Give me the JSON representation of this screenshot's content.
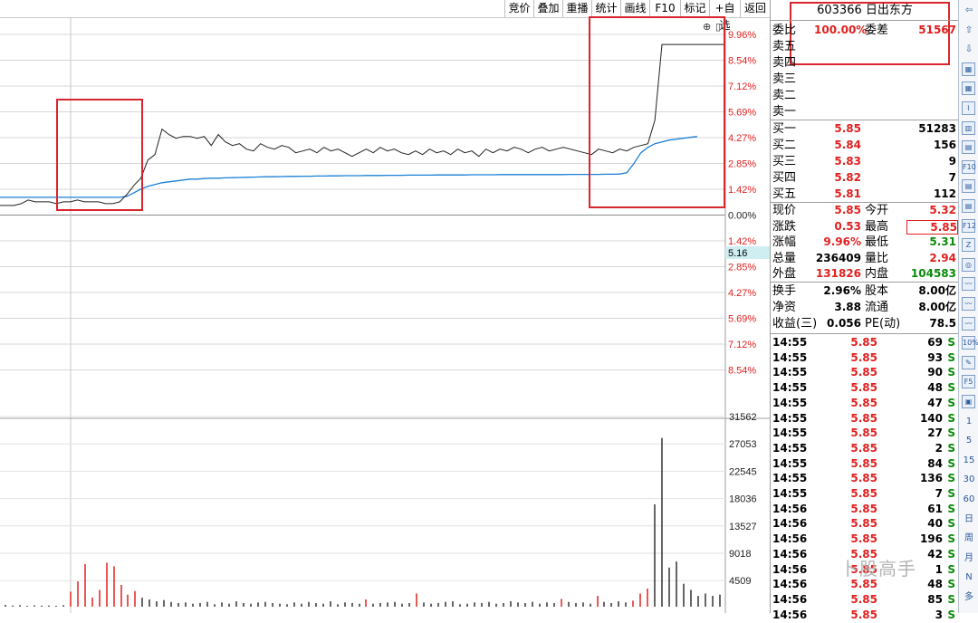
{
  "toolbar": {
    "buttons": [
      "竞价",
      "叠加",
      "重播",
      "统计",
      "画线",
      "F10",
      "标记",
      "+自选",
      "返回"
    ]
  },
  "chart": {
    "pct_axis": [
      "9.96%",
      "8.54%",
      "7.12%",
      "5.69%",
      "4.27%",
      "2.85%",
      "1.42%",
      "0.00%",
      "1.42%",
      "2.85%",
      "4.27%",
      "5.69%",
      "7.12%",
      "8.54%"
    ],
    "cursor_price": "5.16",
    "volume_axis": [
      "31562",
      "27053",
      "22545",
      "18036",
      "13527",
      "9018",
      "4509"
    ],
    "icons": [
      "⊕",
      "▯"
    ],
    "price_line": [
      1.1,
      1.1,
      1.1,
      1.2,
      1.4,
      1.3,
      1.3,
      1.3,
      1.2,
      1.3,
      1.3,
      1.4,
      1.3,
      1.3,
      1.3,
      1.2,
      1.2,
      1.3,
      1.7,
      2.2,
      2.6,
      3.6,
      3.9,
      5.3,
      5.0,
      4.8,
      4.9,
      4.9,
      4.8,
      4.9,
      4.4,
      5.0,
      4.6,
      4.4,
      4.5,
      4.2,
      4.1,
      4.5,
      4.3,
      4.2,
      4.4,
      4.3,
      4.0,
      4.1,
      4.2,
      4.0,
      4.3,
      4.1,
      4.2,
      4.0,
      3.8,
      4.0,
      4.2,
      4.0,
      4.3,
      4.1,
      4.2,
      4.0,
      3.9,
      4.1,
      3.9,
      4.2,
      4.0,
      4.1,
      3.9,
      4.2,
      4.0,
      4.1,
      3.8,
      4.2,
      4.0,
      4.2,
      4.1,
      4.3,
      4.2,
      4.0,
      4.2,
      4.3,
      4.1,
      4.2,
      4.3,
      4.2,
      4.1,
      4.0,
      3.9,
      4.2,
      4.1,
      4.0,
      4.2,
      4.1,
      4.3,
      4.4,
      4.5,
      5.8,
      9.96,
      9.96,
      9.96,
      9.96,
      9.96,
      9.96,
      9.96,
      9.96,
      9.96,
      9.96
    ],
    "avg_line": [
      1.55,
      1.55,
      1.55,
      1.55,
      1.55,
      1.55,
      1.55,
      1.55,
      1.55,
      1.55,
      1.55,
      1.55,
      1.55,
      1.55,
      1.55,
      1.55,
      1.55,
      1.55,
      1.6,
      1.8,
      2.0,
      2.15,
      2.25,
      2.35,
      2.4,
      2.45,
      2.5,
      2.55,
      2.55,
      2.58,
      2.6,
      2.6,
      2.62,
      2.63,
      2.64,
      2.65,
      2.66,
      2.67,
      2.68,
      2.68,
      2.69,
      2.7,
      2.7,
      2.71,
      2.71,
      2.72,
      2.72,
      2.73,
      2.73,
      2.74,
      2.74,
      2.74,
      2.75,
      2.75,
      2.75,
      2.76,
      2.76,
      2.76,
      2.77,
      2.77,
      2.77,
      2.77,
      2.78,
      2.78,
      2.78,
      2.78,
      2.78,
      2.79,
      2.79,
      2.79,
      2.79,
      2.8,
      2.8,
      2.8,
      2.8,
      2.8,
      2.8,
      2.8,
      2.8,
      2.8,
      2.8,
      2.81,
      2.81,
      2.81,
      2.81,
      2.81,
      2.82,
      2.82,
      2.83,
      2.9,
      3.4,
      4.0,
      4.3,
      4.5,
      4.6,
      4.7,
      4.75,
      4.8,
      4.85,
      4.9
    ],
    "volumes": [
      300,
      200,
      250,
      150,
      220,
      180,
      200,
      150,
      250,
      2500,
      4200,
      7100,
      1500,
      2800,
      7300,
      6700,
      3600,
      2000,
      2600,
      1500,
      1200,
      900,
      1100,
      800,
      600,
      700,
      500,
      600,
      800,
      400,
      700,
      500,
      900,
      600,
      500,
      700,
      800,
      600,
      500,
      400,
      700,
      500,
      800,
      600,
      500,
      900,
      400,
      700,
      600,
      500,
      1200,
      500,
      600,
      700,
      800,
      500,
      600,
      2200,
      700,
      500,
      600,
      800,
      900,
      400,
      500,
      700,
      600,
      800,
      500,
      600,
      900,
      700,
      600,
      800,
      500,
      700,
      600,
      1300,
      800,
      600,
      700,
      500,
      1800,
      800,
      600,
      900,
      700,
      1000,
      2200,
      3000,
      17000,
      28000,
      6500,
      7500,
      3800,
      2800,
      1800,
      2200,
      1800,
      2000
    ]
  },
  "quote": {
    "code_name": "603366 日出东方",
    "weibi_label": "委比",
    "weibi_value": "100.00%",
    "weicha_label": "委差",
    "weicha_value": "51567",
    "asks": [
      {
        "label": "卖五"
      },
      {
        "label": "卖四"
      },
      {
        "label": "卖三"
      },
      {
        "label": "卖二"
      },
      {
        "label": "卖一"
      }
    ],
    "bids": [
      {
        "label": "买一",
        "price": "5.85",
        "vol": "51283"
      },
      {
        "label": "买二",
        "price": "5.84",
        "vol": "156"
      },
      {
        "label": "买三",
        "price": "5.83",
        "vol": "9"
      },
      {
        "label": "买四",
        "price": "5.82",
        "vol": "7"
      },
      {
        "label": "买五",
        "price": "5.81",
        "vol": "112"
      }
    ],
    "stats": [
      {
        "l1": "现价",
        "v1": "5.85",
        "c1": "red",
        "l2": "今开",
        "v2": "5.32",
        "c2": "red"
      },
      {
        "l1": "涨跌",
        "v1": "0.53",
        "c1": "red",
        "l2": "最高",
        "v2": "5.85",
        "c2": "red"
      },
      {
        "l1": "涨幅",
        "v1": "9.96%",
        "c1": "red",
        "l2": "最低",
        "v2": "5.31",
        "c2": "green"
      },
      {
        "l1": "总量",
        "v1": "236409",
        "c1": "blk",
        "l2": "量比",
        "v2": "2.94",
        "c2": "red"
      },
      {
        "l1": "外盘",
        "v1": "131826",
        "c1": "red",
        "l2": "内盘",
        "v2": "104583",
        "c2": "green"
      }
    ],
    "stats2": [
      {
        "l1": "换手",
        "v1": "2.96%",
        "l2": "股本",
        "v2": "8.00亿"
      },
      {
        "l1": "净资",
        "v1": "3.88",
        "l2": "流通",
        "v2": "8.00亿"
      },
      {
        "l1": "收益(三)",
        "v1": "0.056",
        "l2": "PE(动)",
        "v2": "78.5"
      }
    ],
    "ticks": [
      {
        "t": "14:55",
        "p": "5.85",
        "v": "69",
        "s": "S"
      },
      {
        "t": "14:55",
        "p": "5.85",
        "v": "93",
        "s": "S"
      },
      {
        "t": "14:55",
        "p": "5.85",
        "v": "90",
        "s": "S"
      },
      {
        "t": "14:55",
        "p": "5.85",
        "v": "48",
        "s": "S"
      },
      {
        "t": "14:55",
        "p": "5.85",
        "v": "47",
        "s": "S"
      },
      {
        "t": "14:55",
        "p": "5.85",
        "v": "140",
        "s": "S"
      },
      {
        "t": "14:55",
        "p": "5.85",
        "v": "27",
        "s": "S"
      },
      {
        "t": "14:55",
        "p": "5.85",
        "v": "2",
        "s": "S"
      },
      {
        "t": "14:55",
        "p": "5.85",
        "v": "84",
        "s": "S"
      },
      {
        "t": "14:55",
        "p": "5.85",
        "v": "136",
        "s": "S"
      },
      {
        "t": "14:55",
        "p": "5.85",
        "v": "7",
        "s": "S"
      },
      {
        "t": "14:56",
        "p": "5.85",
        "v": "61",
        "s": "S"
      },
      {
        "t": "14:56",
        "p": "5.85",
        "v": "40",
        "s": "S"
      },
      {
        "t": "14:56",
        "p": "5.85",
        "v": "196",
        "s": "S"
      },
      {
        "t": "14:56",
        "p": "5.85",
        "v": "42",
        "s": "S"
      },
      {
        "t": "14:56",
        "p": "5.85",
        "v": "1",
        "s": "S"
      },
      {
        "t": "14:56",
        "p": "5.85",
        "v": "48",
        "s": "S"
      },
      {
        "t": "14:56",
        "p": "5.85",
        "v": "85",
        "s": "S"
      },
      {
        "t": "14:56",
        "p": "5.85",
        "v": "3",
        "s": "S"
      }
    ]
  },
  "sidebar": {
    "items": [
      "⇦",
      "⇧",
      "⇩",
      "▦",
      "▦",
      "⌇",
      "▥",
      "▤",
      "F10",
      "▤",
      "▤",
      "F12",
      "Z",
      "◎",
      "〰",
      "〰",
      "〰",
      "10%",
      "✎",
      "F5",
      "▣",
      "1",
      "5",
      "15",
      "30",
      "60",
      "日",
      "周",
      "月",
      "N",
      "多"
    ]
  },
  "watermark": "卜股高手"
}
